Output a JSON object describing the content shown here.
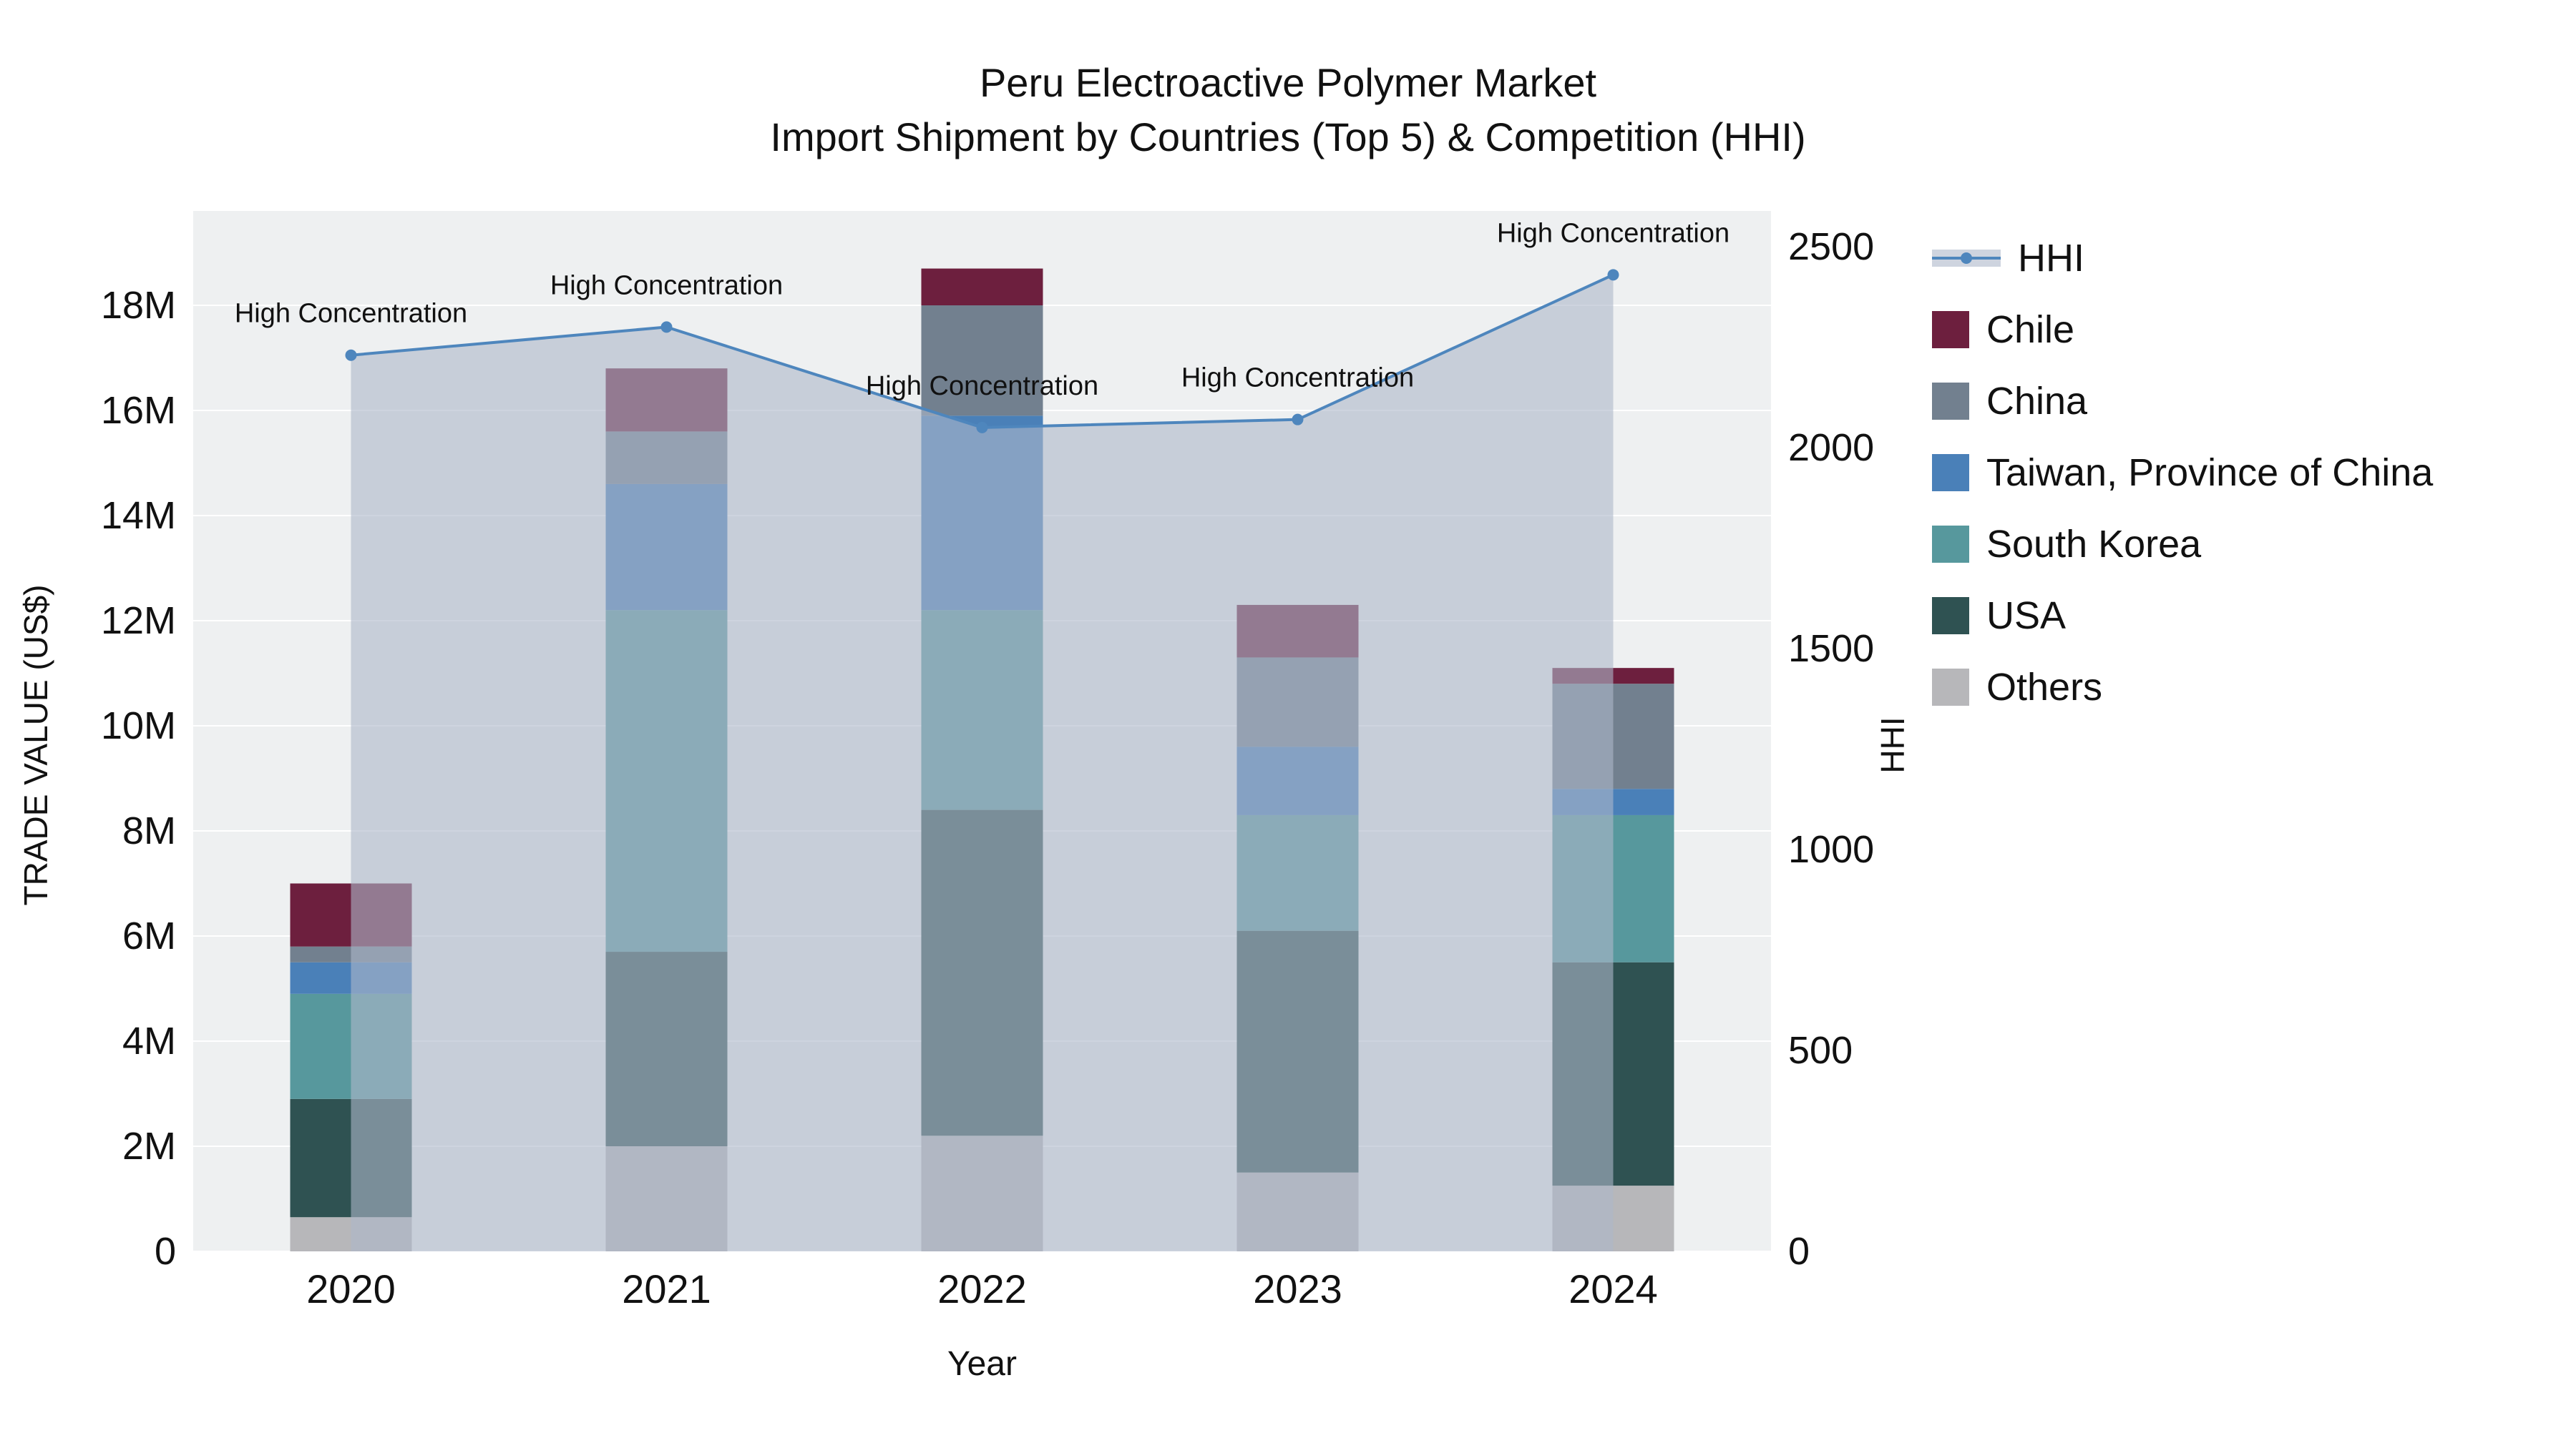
{
  "title": {
    "line1": "Peru Electroactive Polymer Market",
    "line2": "Import Shipment by Countries (Top 5) & Competition (HHI)"
  },
  "chart_data": {
    "type": "bar",
    "subtype": "stacked-bar-with-line",
    "title": "Peru Electroactive Polymer Market — Import Shipment by Countries (Top 5) & Competition (HHI)",
    "xlabel": "Year",
    "ylabel": "TRADE VALUE (US$)",
    "y2label": "HHI",
    "categories": [
      "2020",
      "2021",
      "2022",
      "2023",
      "2024"
    ],
    "unit": "US$ millions",
    "series": [
      {
        "name": "Others",
        "color": "#b7b7ba",
        "values": [
          0.65,
          2.0,
          2.2,
          1.5,
          1.25
        ]
      },
      {
        "name": "USA",
        "color": "#2f5252",
        "values": [
          2.25,
          3.7,
          6.2,
          4.6,
          4.25
        ]
      },
      {
        "name": "South Korea",
        "color": "#57989d",
        "values": [
          2.0,
          6.5,
          3.8,
          2.2,
          2.8
        ]
      },
      {
        "name": "Taiwan, Province of China",
        "color": "#4a80b8",
        "values": [
          0.6,
          2.4,
          3.7,
          1.3,
          0.5
        ]
      },
      {
        "name": "China",
        "color": "#72808f",
        "values": [
          0.3,
          1.0,
          2.1,
          1.7,
          2.0
        ]
      },
      {
        "name": "Chile",
        "color": "#6d1f3e",
        "values": [
          1.2,
          1.2,
          0.7,
          1.0,
          0.3
        ]
      }
    ],
    "line_series": {
      "name": "HHI",
      "color": "#4e86bd",
      "fill": "rgba(174,184,201,0.6)",
      "values": [
        2230,
        2300,
        2050,
        2070,
        2430
      ]
    },
    "annotations": [
      "High Concentration",
      "High Concentration",
      "High Concentration",
      "High Concentration",
      "High Concentration"
    ],
    "y_axis": {
      "tick_values_musd": [
        0,
        2,
        4,
        6,
        8,
        10,
        12,
        14,
        16,
        18
      ],
      "tick_labels": [
        "0",
        "2M",
        "4M",
        "6M",
        "8M",
        "10M",
        "12M",
        "14M",
        "16M",
        "18M"
      ],
      "range_musd": [
        0,
        19.8
      ],
      "grid": true
    },
    "y2_axis": {
      "tick_values": [
        0,
        500,
        1000,
        1500,
        2000,
        2500
      ],
      "tick_labels": [
        "0",
        "500",
        "1000",
        "1500",
        "2000",
        "2500"
      ],
      "range": [
        0,
        2500
      ]
    },
    "legend_order": [
      "HHI",
      "Chile",
      "China",
      "Taiwan, Province of China",
      "South Korea",
      "USA",
      "Others"
    ],
    "plot_bg": "#eef0f1",
    "grid_color": "#ffffff"
  }
}
